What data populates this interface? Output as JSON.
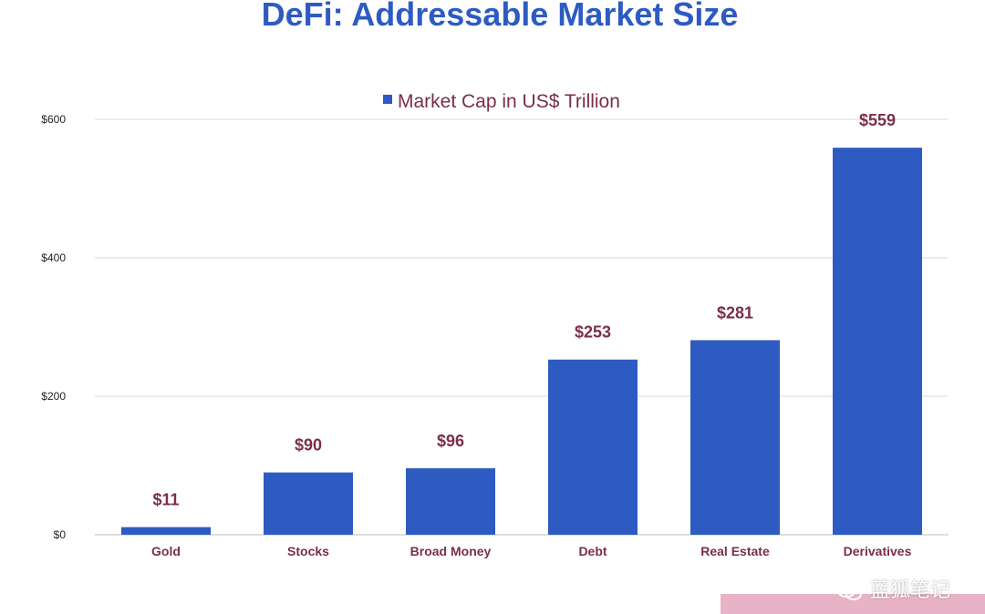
{
  "title": "DeFi: Addressable Market Size",
  "chart_data": {
    "type": "bar",
    "categories": [
      "Gold",
      "Stocks",
      "Broad Money",
      "Debt",
      "Real Estate",
      "Derivatives"
    ],
    "series": [
      {
        "name": "Market Cap in US$ Trillion",
        "values": [
          11,
          90,
          96,
          253,
          281,
          559
        ]
      }
    ],
    "data_labels": [
      "$11",
      "$90",
      "$96",
      "$253",
      "$281",
      "$559"
    ],
    "y_ticks": [
      0,
      200,
      400,
      600
    ],
    "y_tick_labels": [
      "$0",
      "$200",
      "$400",
      "$600"
    ],
    "ylim": [
      0,
      600
    ],
    "grid": true,
    "legend_position": "top-center",
    "xlabel": "",
    "ylabel": ""
  },
  "colors": {
    "bar": "#2d5bc2",
    "title": "#2d5bc2",
    "labels": "#7a2e4a",
    "grid": "#d9d9d9",
    "axis_text": "#222222",
    "watermark_bg": "#e9b3c7"
  },
  "watermark": {
    "text": "蓝狐笔记",
    "icon": "wechat-icon"
  }
}
